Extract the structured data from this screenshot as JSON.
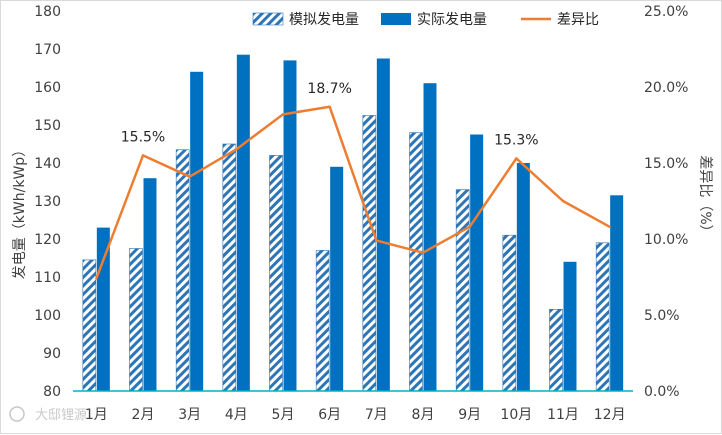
{
  "chart_data": {
    "type": "bar",
    "title": "",
    "categories": [
      "1月",
      "2月",
      "3月",
      "4月",
      "5月",
      "6月",
      "7月",
      "8月",
      "9月",
      "10月",
      "11月",
      "12月"
    ],
    "series": [
      {
        "name": "模拟发电量",
        "kind": "bar",
        "axis": "left",
        "values": [
          114.5,
          117.5,
          143.5,
          145,
          142,
          117,
          152.5,
          148,
          133,
          121,
          101.5,
          119
        ],
        "color": "#2e75b6",
        "pattern": "diagonal-hatch"
      },
      {
        "name": "实际发电量",
        "kind": "bar",
        "axis": "left",
        "values": [
          123,
          136,
          164,
          168.5,
          167,
          139,
          167.5,
          161,
          147.5,
          140,
          114,
          131.5
        ],
        "color": "#0070c0"
      },
      {
        "name": "差异比",
        "kind": "line",
        "axis": "right",
        "values": [
          7.4,
          15.5,
          14.1,
          15.9,
          18.2,
          18.7,
          9.9,
          9.1,
          10.8,
          15.3,
          12.5,
          10.8
        ],
        "color": "#ed7d31"
      }
    ],
    "ylabel": "发电量（kWh/kWp）",
    "y2label": "差异比（%）",
    "ylim": [
      80,
      180
    ],
    "y2lim": [
      0,
      25
    ],
    "yticks": [
      "80",
      "90",
      "100",
      "110",
      "120",
      "130",
      "140",
      "150",
      "160",
      "170",
      "180"
    ],
    "y2ticks": [
      "0.0%",
      "5.0%",
      "10.0%",
      "15.0%",
      "20.0%",
      "25.0%"
    ],
    "data_labels": [
      {
        "series": "差异比",
        "index": 1,
        "text": "15.5%"
      },
      {
        "series": "差异比",
        "index": 5,
        "text": "18.7%"
      },
      {
        "series": "差异比",
        "index": 9,
        "text": "15.3%"
      }
    ],
    "legend": "top-right",
    "grid": false
  },
  "watermark": "大邸锂源"
}
